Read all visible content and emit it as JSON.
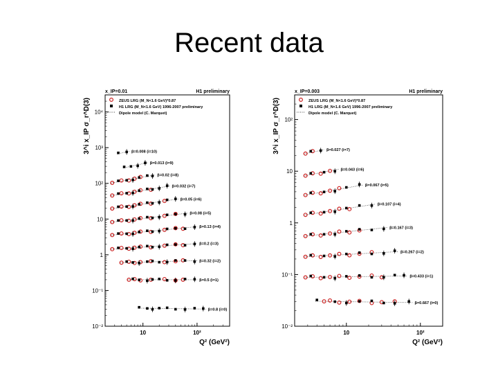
{
  "slide": {
    "title": "Recent data"
  },
  "colors": {
    "zeus": "#cc2222",
    "h1": "#000000",
    "dipole": "#444444"
  },
  "chart_data": [
    {
      "type": "scatter",
      "header_left": "x_IP=0.01",
      "header_right": "H1 preliminary",
      "ylabel": "3^i x_IP σ_r^D(3)",
      "xlabel": "Q² (GeV²)",
      "xscale": "log",
      "yscale": "log",
      "xlim": [
        2,
        400
      ],
      "ylim": [
        0.01,
        30000
      ],
      "x_ticks": [
        "10",
        "10²"
      ],
      "y_ticks": [
        "10⁴",
        "10³",
        "10²",
        "10",
        "1",
        "10⁻¹",
        "10⁻²"
      ],
      "legend": [
        {
          "marker": "open-circle",
          "label": "ZEUS LRG (M_N<1.6 GeV)*0.87"
        },
        {
          "marker": "filled-square",
          "label": "H1 LRG (M_N<1.6 GeV) 1996-2007 preliminary"
        },
        {
          "marker": "dotted-line",
          "label": "Dipole model (C. Marquet)"
        }
      ],
      "series": [
        {
          "label": "β=0.008 (i=10)",
          "y": 900,
          "slope": 0.35,
          "zeus_x": [],
          "h1_x": [
            3.5,
            5
          ]
        },
        {
          "label": "β=0.013 (i=9)",
          "y": 330,
          "slope": 0.33,
          "zeus_x": [],
          "h1_x": [
            4.5,
            6,
            8,
            11
          ]
        },
        {
          "label": "β=0.02 (i=8)",
          "y": 140,
          "slope": 0.28,
          "zeus_x": [
            2.7,
            4,
            5.5,
            7,
            9
          ],
          "h1_x": [
            3.5,
            5,
            6.5,
            8.5,
            12,
            15
          ]
        },
        {
          "label": "β=0.032 (i=7)",
          "y": 60,
          "slope": 0.25,
          "zeus_x": [
            2.7,
            4,
            5.5,
            7,
            9,
            14
          ],
          "h1_x": [
            3.5,
            5,
            6.5,
            8.5,
            12,
            15,
            20,
            28
          ]
        },
        {
          "label": "β=0.05 (i=6)",
          "y": 25,
          "slope": 0.22,
          "zeus_x": [
            2.7,
            4,
            5.5,
            7,
            9,
            14,
            25
          ],
          "h1_x": [
            3.5,
            5,
            6.5,
            8.5,
            12,
            15,
            20,
            28,
            40
          ]
        },
        {
          "label": "β=0.08 (i=5)",
          "y": 10,
          "slope": 0.18,
          "zeus_x": [
            2.7,
            4,
            5.5,
            7,
            9,
            14,
            25,
            40
          ],
          "h1_x": [
            3.5,
            5,
            6.5,
            8.5,
            12,
            15,
            20,
            28,
            40,
            60
          ]
        },
        {
          "label": "β=0.13 (i=4)",
          "y": 4.2,
          "slope": 0.15,
          "zeus_x": [
            2.7,
            4,
            5.5,
            7,
            9,
            14,
            25,
            40,
            55
          ],
          "h1_x": [
            3.5,
            5,
            6.5,
            8.5,
            12,
            15,
            20,
            28,
            40,
            60,
            90
          ]
        },
        {
          "label": "β=0.2 (i=3)",
          "y": 1.6,
          "slope": 0.1,
          "zeus_x": [
            2.7,
            4,
            5.5,
            7,
            9,
            14,
            25,
            40,
            55
          ],
          "h1_x": [
            3.5,
            5,
            6.5,
            8.5,
            12,
            15,
            20,
            28,
            40,
            60,
            90
          ]
        },
        {
          "label": "β=0.32 (i=2)",
          "y": 0.62,
          "slope": 0.04,
          "zeus_x": [
            4,
            5.5,
            7,
            9,
            14,
            25,
            40,
            55
          ],
          "h1_x": [
            5,
            6.5,
            8.5,
            12,
            15,
            20,
            28,
            40,
            60,
            90
          ]
        },
        {
          "label": "β=0.5 (i=1)",
          "y": 0.2,
          "slope": 0.0,
          "zeus_x": [
            5.5,
            7,
            9,
            14,
            25,
            40,
            55
          ],
          "h1_x": [
            6.5,
            8.5,
            12,
            15,
            20,
            28,
            40,
            60,
            90
          ]
        },
        {
          "label": "β=0.8 (i=0)",
          "y": 0.032,
          "slope": -0.02,
          "zeus_x": [],
          "h1_x": [
            8.5,
            12,
            15,
            20,
            28,
            40,
            60,
            90,
            130
          ]
        }
      ]
    },
    {
      "type": "scatter",
      "header_left": "x_IP=0.003",
      "header_right": "H1 preliminary",
      "ylabel": "3^i x_IP σ_r^D(3)",
      "xlabel": "Q² (GeV²)",
      "xscale": "log",
      "yscale": "log",
      "xlim": [
        2,
        200
      ],
      "ylim": [
        0.01,
        300
      ],
      "x_ticks": [
        "10",
        "10²"
      ],
      "y_ticks": [
        "10²",
        "10",
        "1",
        "10⁻¹",
        "10⁻²"
      ],
      "legend": [
        {
          "marker": "open-circle",
          "label": "ZEUS LRG (M_N<1.6 GeV)*0.87"
        },
        {
          "marker": "filled-square",
          "label": "H1 LRG (M_N<1.6 GeV) 1996-2007 preliminary"
        },
        {
          "marker": "dotted-line",
          "label": "Dipole model (C. Marquet)"
        }
      ],
      "series": [
        {
          "label": "β=0.027 (i=7)",
          "y": 30,
          "slope": 0.3,
          "zeus_x": [
            2.8,
            3.5
          ],
          "h1_x": [
            3.3,
            4.5
          ]
        },
        {
          "label": "β=0.043 (i=6)",
          "y": 11,
          "slope": 0.28,
          "zeus_x": [
            2.8,
            3.5,
            4.5,
            6
          ],
          "h1_x": [
            3.3,
            5,
            7
          ]
        },
        {
          "label": "β=0.067 (i=5)",
          "y": 4.5,
          "slope": 0.25,
          "zeus_x": [
            2.8,
            3.5,
            4.5,
            6,
            8
          ],
          "h1_x": [
            3.3,
            5,
            7,
            10,
            15
          ]
        },
        {
          "label": "β=0.107 (i=4)",
          "y": 1.8,
          "slope": 0.22,
          "zeus_x": [
            2.8,
            3.5,
            4.5,
            6,
            8,
            11
          ],
          "h1_x": [
            3.3,
            5,
            7,
            10,
            15,
            22
          ]
        },
        {
          "label": "β=0.167 (i=3)",
          "y": 0.65,
          "slope": 0.15,
          "zeus_x": [
            2.8,
            3.5,
            4.5,
            6,
            8,
            11,
            15
          ],
          "h1_x": [
            3.3,
            5,
            7,
            10,
            15,
            22,
            32
          ]
        },
        {
          "label": "β=0.267 (i=2)",
          "y": 0.24,
          "slope": 0.08,
          "zeus_x": [
            2.8,
            3.5,
            4.5,
            6,
            8,
            11,
            15,
            22
          ],
          "h1_x": [
            3.3,
            5,
            7,
            10,
            15,
            22,
            32,
            45
          ]
        },
        {
          "label": "β=0.433 (i=1)",
          "y": 0.09,
          "slope": 0.02,
          "zeus_x": [
            2.8,
            3.5,
            4.5,
            6,
            8,
            11,
            15,
            22,
            30
          ],
          "h1_x": [
            3.3,
            5,
            7,
            10,
            15,
            22,
            32,
            45,
            60
          ]
        },
        {
          "label": "β=0.667 (i=0)",
          "y": 0.03,
          "slope": -0.02,
          "zeus_x": [
            5,
            6,
            8,
            11,
            15,
            22,
            30,
            45
          ],
          "h1_x": [
            4,
            7,
            10,
            15,
            22,
            32,
            45,
            70
          ]
        }
      ]
    }
  ]
}
